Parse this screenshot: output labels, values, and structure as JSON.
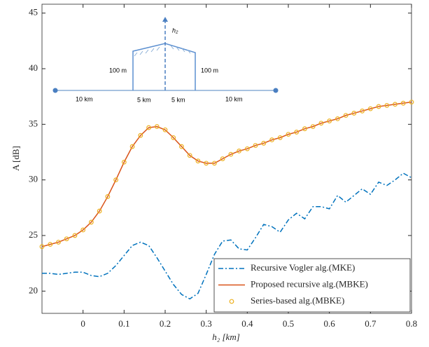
{
  "chart_data": {
    "type": "line",
    "xlabel": "h₂ [km]",
    "ylabel": "A [dB]",
    "x": [
      -0.1,
      -0.08,
      -0.06,
      -0.04,
      -0.02,
      0,
      0.02,
      0.04,
      0.06,
      0.08,
      0.1,
      0.12,
      0.14,
      0.16,
      0.18,
      0.2,
      0.22,
      0.24,
      0.26,
      0.28,
      0.3,
      0.32,
      0.34,
      0.36,
      0.38,
      0.4,
      0.42,
      0.44,
      0.46,
      0.48,
      0.5,
      0.52,
      0.54,
      0.56,
      0.58,
      0.6,
      0.62,
      0.64,
      0.66,
      0.68,
      0.7,
      0.72,
      0.74,
      0.76,
      0.78,
      0.8
    ],
    "series": [
      {
        "name": "Recursive Vogler alg.(MKE)",
        "color": "#0072bd",
        "style": "dash-dot",
        "values": [
          21.6,
          21.6,
          21.5,
          21.6,
          21.7,
          21.7,
          21.4,
          21.3,
          21.6,
          22.3,
          23.2,
          24.1,
          24.4,
          24.1,
          23.0,
          21.8,
          20.6,
          19.7,
          19.3,
          19.8,
          21.5,
          23.3,
          24.5,
          24.6,
          23.8,
          23.7,
          24.8,
          26.0,
          25.8,
          25.3,
          26.4,
          27.0,
          26.5,
          27.6,
          27.6,
          27.4,
          28.6,
          28.0,
          28.6,
          29.2,
          28.7,
          29.8,
          29.5,
          30.0,
          30.6,
          30.2
        ]
      },
      {
        "name": "Proposed recursive alg.(MBKE)",
        "color": "#d95319",
        "style": "solid",
        "values": [
          24.0,
          24.2,
          24.4,
          24.7,
          25.0,
          25.5,
          26.2,
          27.2,
          28.5,
          30.0,
          31.6,
          33.0,
          34.0,
          34.7,
          34.8,
          34.5,
          33.8,
          33.0,
          32.2,
          31.7,
          31.5,
          31.5,
          31.9,
          32.3,
          32.6,
          32.8,
          33.1,
          33.3,
          33.6,
          33.8,
          34.1,
          34.3,
          34.6,
          34.8,
          35.1,
          35.3,
          35.5,
          35.8,
          36.0,
          36.2,
          36.4,
          36.6,
          36.7,
          36.8,
          36.9,
          37.0
        ]
      },
      {
        "name": "Series-based alg.(MBKE)",
        "color": "#edb120",
        "style": "markers",
        "values": [
          24.0,
          24.2,
          24.4,
          24.7,
          25.0,
          25.5,
          26.2,
          27.2,
          28.5,
          30.0,
          31.6,
          33.0,
          34.0,
          34.7,
          34.8,
          34.5,
          33.8,
          33.0,
          32.2,
          31.7,
          31.5,
          31.5,
          31.9,
          32.3,
          32.6,
          32.8,
          33.1,
          33.3,
          33.6,
          33.8,
          34.1,
          34.3,
          34.6,
          34.8,
          35.1,
          35.3,
          35.5,
          35.8,
          36.0,
          36.2,
          36.4,
          36.6,
          36.7,
          36.8,
          36.9,
          37.0
        ]
      }
    ],
    "xlim": [
      -0.1,
      0.8
    ],
    "xticks": [
      0,
      0.1,
      0.2,
      0.3,
      0.4,
      0.5,
      0.6,
      0.7,
      0.8
    ],
    "ylim": [
      18,
      45.8
    ],
    "yticks": [
      20,
      25,
      30,
      35,
      40,
      45
    ],
    "grid": false,
    "legend": "lower right",
    "inset_labels": [
      "h₂",
      "100 m",
      "100 m",
      "10 km",
      "5 km",
      "5 km",
      "10 km"
    ]
  }
}
